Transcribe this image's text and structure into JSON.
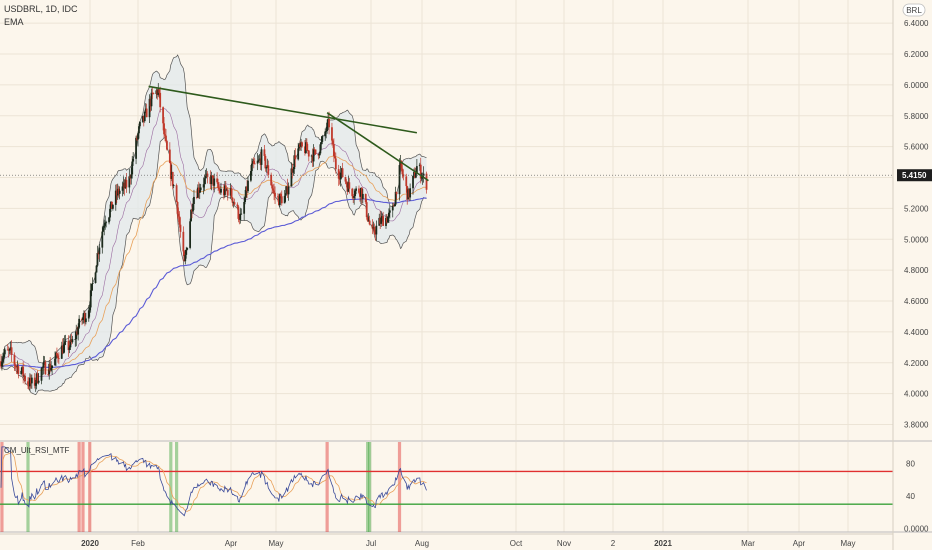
{
  "legend": {
    "title": "USDBRL, 1D, IDC",
    "ema": "EMA",
    "indicator": "CM_Ult_RSI_MTF"
  },
  "currency_badge": "BRL",
  "price_label": "5.4150",
  "colors": {
    "background": "#fcf6ec",
    "up_candle": "#1c2a1c",
    "down_candle": "#c0392b",
    "bb_fill": "#dfe8ec",
    "bb_line": "#555555",
    "ema_blue": "#5b5bd6",
    "ema_orange": "#e8a15a",
    "ema_purple": "#9a6aa0",
    "trendline": "#2e5a1c",
    "rsi_upper": "#e03030",
    "rsi_lower": "#3aa13a"
  },
  "chart_data": [
    {
      "type": "line",
      "title": "USDBRL, 1D, IDC",
      "subtitle": "EMA",
      "x_ticks": [
        "2020",
        "Feb",
        "Apr",
        "May",
        "Jul",
        "Aug",
        "Oct",
        "Nov",
        "2",
        "2021",
        "Mar",
        "Apr",
        "May"
      ],
      "y_ticks": [
        "6.4000",
        "6.2000",
        "6.0000",
        "5.8000",
        "5.6000",
        "5.4000",
        "5.2000",
        "5.0000",
        "4.8000",
        "4.6000",
        "4.4000",
        "4.2000",
        "4.0000",
        "3.8000"
      ],
      "ylim": [
        3.7,
        6.55
      ],
      "last_price": 5.415,
      "grid": true,
      "price_anchors": [
        [
          "2019-12-01",
          4.21
        ],
        [
          "2019-12-12",
          4.27
        ],
        [
          "2019-12-28",
          4.07
        ],
        [
          "2020-01-06",
          4.09
        ],
        [
          "2020-01-25",
          4.21
        ],
        [
          "2020-02-17",
          4.37
        ],
        [
          "2020-03-01",
          4.55
        ],
        [
          "2020-03-13",
          4.95
        ],
        [
          "2020-03-19",
          5.15
        ],
        [
          "2020-04-01",
          5.28
        ],
        [
          "2020-04-13",
          5.4
        ],
        [
          "2020-04-24",
          5.72
        ],
        [
          "2020-05-03",
          5.88
        ],
        [
          "2020-05-13",
          5.95
        ],
        [
          "2020-05-25",
          5.45
        ],
        [
          "2020-06-02",
          5.2
        ],
        [
          "2020-06-09",
          4.85
        ],
        [
          "2020-06-18",
          5.25
        ],
        [
          "2020-06-28",
          5.4
        ],
        [
          "2020-07-11",
          5.35
        ],
        [
          "2020-07-25",
          5.3
        ],
        [
          "2020-08-07",
          5.15
        ],
        [
          "2020-08-18",
          5.45
        ],
        [
          "2020-08-28",
          5.55
        ],
        [
          "2020-09-10",
          5.3
        ],
        [
          "2020-09-22",
          5.25
        ],
        [
          "2020-10-03",
          5.6
        ],
        [
          "2020-10-17",
          5.55
        ],
        [
          "2020-10-29",
          5.6
        ],
        [
          "2020-11-06",
          5.75
        ],
        [
          "2020-11-14",
          5.45
        ],
        [
          "2020-11-25",
          5.35
        ],
        [
          "2020-12-09",
          5.3
        ],
        [
          "2020-12-21",
          5.05
        ],
        [
          "2020-12-30",
          5.1
        ],
        [
          "2021-01-11",
          5.2
        ],
        [
          "2021-01-19",
          5.45
        ],
        [
          "2021-01-27",
          5.3
        ],
        [
          "2021-02-05",
          5.45
        ],
        [
          "2021-02-15",
          5.38
        ]
      ],
      "trendlines": [
        {
          "from": [
            "2020-05-03",
            5.99
          ],
          "to": [
            "2021-02-05",
            5.69
          ]
        },
        {
          "from": [
            "2020-11-04",
            5.82
          ],
          "to": [
            "2021-02-17",
            5.38
          ]
        }
      ]
    },
    {
      "type": "line",
      "title": "CM_Ult_RSI_MTF",
      "y_ticks": [
        "80",
        "40",
        "0.0000"
      ],
      "ylim": [
        -4,
        106
      ],
      "upper_band": 70,
      "lower_band": 30
    }
  ]
}
